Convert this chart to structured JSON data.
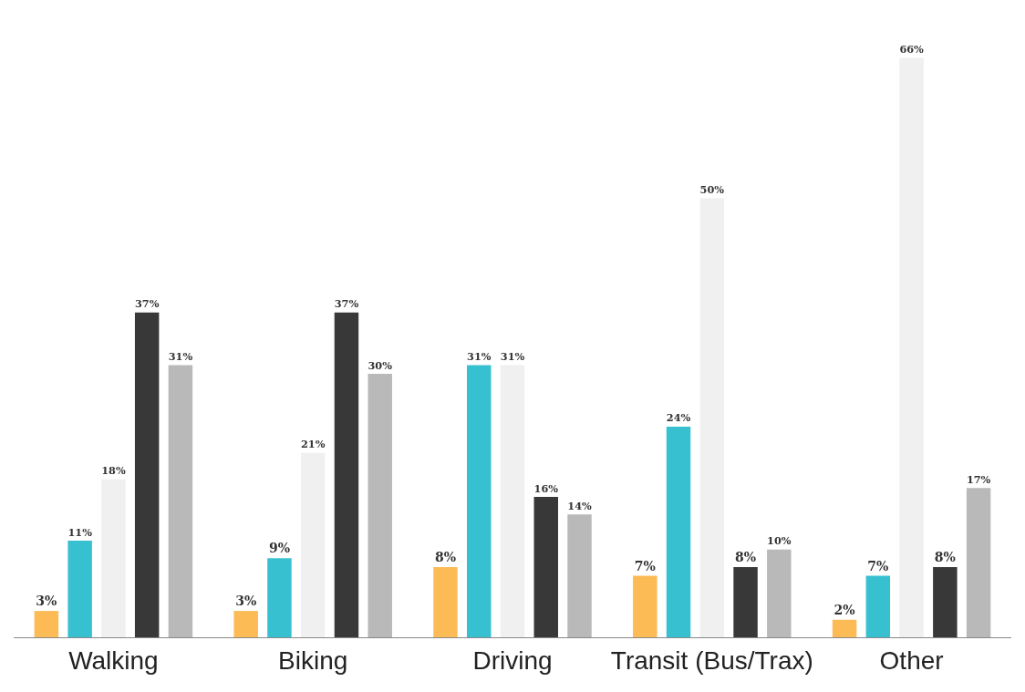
{
  "chart_data": {
    "type": "bar",
    "categories": [
      "Walking",
      "Biking",
      "Driving",
      "Transit (Bus/Trax)",
      "Other"
    ],
    "series": [
      {
        "color": "#fdbb55",
        "values": [
          3,
          3,
          8,
          7,
          2
        ],
        "value_labels": [
          "3%",
          "3%",
          "8%",
          "7%",
          "2%"
        ]
      },
      {
        "color": "#37c0d0",
        "values": [
          11,
          9,
          31,
          24,
          7
        ],
        "value_labels": [
          "11%",
          "9%",
          "31%",
          "24%",
          "7%"
        ]
      },
      {
        "color": "#f0f0f0",
        "values": [
          18,
          21,
          31,
          50,
          66
        ],
        "value_labels": [
          "18%",
          "21%",
          "31%",
          "50%",
          "66%"
        ]
      },
      {
        "color": "#383838",
        "values": [
          37,
          37,
          16,
          8,
          8
        ],
        "value_labels": [
          "37%",
          "37%",
          "16%",
          "8%",
          "8%"
        ]
      },
      {
        "color": "#b9b9b9",
        "values": [
          31,
          30,
          14,
          10,
          17
        ],
        "value_labels": [
          "31%",
          "30%",
          "14%",
          "10%",
          "17%"
        ]
      }
    ],
    "tick_labels": "x"
  }
}
